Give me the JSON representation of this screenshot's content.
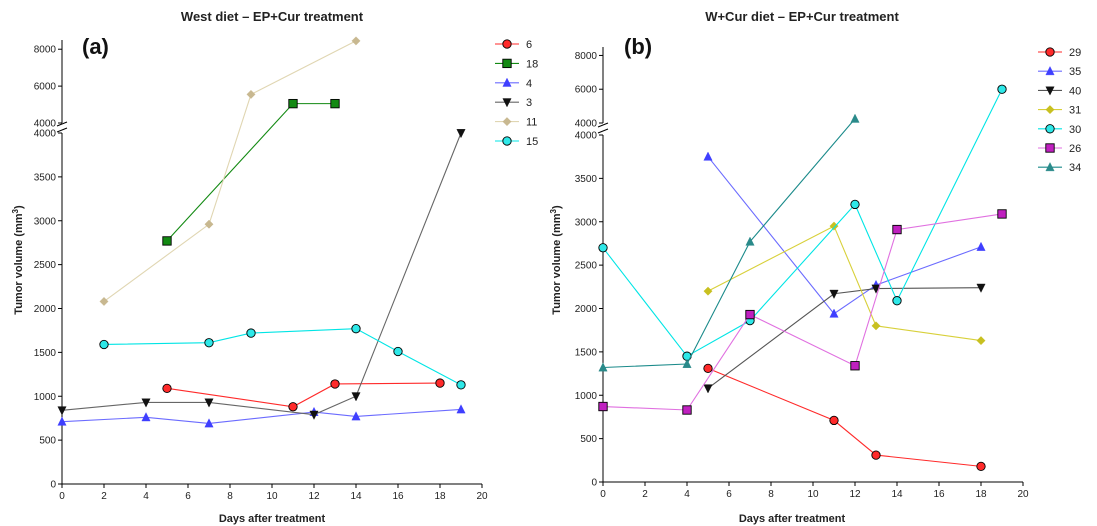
{
  "chart_data": [
    {
      "type": "line",
      "panel_label": "(a)",
      "title": "West diet – EP+Cur treatment",
      "xlabel": "Days after treatment",
      "ylabel_main": "Tumor volume (mm",
      "ylabel_sup": "3",
      "ylabel_close": ")",
      "xlim": [
        0,
        20
      ],
      "x_ticks": [
        "0",
        "2",
        "4",
        "6",
        "8",
        "10",
        "12",
        "14",
        "16",
        "18",
        "20"
      ],
      "y_lower_range": [
        0,
        4000
      ],
      "y_lower_ticks": [
        "0",
        "500",
        "1000",
        "1500",
        "2000",
        "2500",
        "3000",
        "3500",
        "4000"
      ],
      "y_upper_range": [
        4000,
        8500
      ],
      "y_upper_ticks": [
        "4000",
        "6000",
        "8000"
      ],
      "axis_break": true,
      "grid": false,
      "legend_position": "right",
      "series": [
        {
          "name": "6",
          "color": "#ff2a2a",
          "line_color": "#ff2a2a",
          "marker": "circle",
          "fill": "#ff2a2a",
          "x": [
            5,
            11,
            13,
            18
          ],
          "y": [
            1090,
            880,
            1140,
            1150
          ]
        },
        {
          "name": "18",
          "color": "#138a13",
          "line_color": "#138a13",
          "marker": "square",
          "fill": "#138a13",
          "x": [
            5,
            11,
            13
          ],
          "y": [
            2770,
            5050,
            5050
          ]
        },
        {
          "name": "4",
          "color": "#6b6bff",
          "line_color": "#6b6bff",
          "marker": "triangle-up",
          "fill": "#3f3fff",
          "x": [
            0,
            4,
            7,
            12,
            14,
            19
          ],
          "y": [
            710,
            760,
            690,
            820,
            770,
            850
          ]
        },
        {
          "name": "3",
          "color": "#666666",
          "line_color": "#666666",
          "marker": "triangle-down",
          "fill": "#111111",
          "x": [
            0,
            4,
            7,
            12,
            14,
            19
          ],
          "y": [
            840,
            930,
            930,
            790,
            1000,
            4000
          ]
        },
        {
          "name": "11",
          "color": "#e0d6b2",
          "line_color": "#e0d6b2",
          "marker": "diamond",
          "fill": "#c8b890",
          "x": [
            2,
            7,
            9,
            14
          ],
          "y": [
            2080,
            2960,
            5550,
            8450
          ]
        },
        {
          "name": "15",
          "color": "#00e5e5",
          "line_color": "#00e5e5",
          "marker": "circle",
          "fill": "#2ee8e8",
          "x": [
            2,
            7,
            9,
            14,
            16,
            19
          ],
          "y": [
            1590,
            1610,
            1720,
            1770,
            1510,
            1130
          ]
        }
      ]
    },
    {
      "type": "line",
      "panel_label": "(b)",
      "title": "W+Cur diet – EP+Cur treatment",
      "xlabel": "Days after treatment",
      "ylabel_main": "Tumor volume (mm",
      "ylabel_sup": "3",
      "ylabel_close": ")",
      "xlim": [
        0,
        20
      ],
      "x_ticks": [
        "0",
        "2",
        "4",
        "6",
        "8",
        "10",
        "12",
        "14",
        "16",
        "18",
        "20"
      ],
      "y_lower_range": [
        0,
        4000
      ],
      "y_lower_ticks": [
        "0",
        "500",
        "1000",
        "1500",
        "2000",
        "2500",
        "3000",
        "3500",
        "4000"
      ],
      "y_upper_range": [
        4000,
        8500
      ],
      "y_upper_ticks": [
        "4000",
        "6000",
        "8000"
      ],
      "axis_break": true,
      "grid": false,
      "legend_position": "right",
      "series": [
        {
          "name": "29",
          "color": "#ff2a2a",
          "line_color": "#ff2a2a",
          "marker": "circle",
          "fill": "#ff2a2a",
          "x": [
            5,
            11,
            13,
            18
          ],
          "y": [
            1310,
            710,
            310,
            180
          ]
        },
        {
          "name": "35",
          "color": "#6b6bff",
          "line_color": "#6b6bff",
          "marker": "triangle-up",
          "fill": "#3f3fff",
          "x": [
            5,
            11,
            13,
            18
          ],
          "y": [
            3750,
            1940,
            2270,
            2710
          ]
        },
        {
          "name": "40",
          "color": "#555555",
          "line_color": "#555555",
          "marker": "triangle-down",
          "fill": "#111111",
          "x": [
            5,
            11,
            13,
            18
          ],
          "y": [
            1080,
            2170,
            2230,
            2240
          ]
        },
        {
          "name": "31",
          "color": "#d8d03a",
          "line_color": "#d8d03a",
          "marker": "diamond",
          "fill": "#c8c020",
          "x": [
            5,
            11,
            13,
            18
          ],
          "y": [
            2200,
            2950,
            1800,
            1630
          ]
        },
        {
          "name": "30",
          "color": "#00e5e5",
          "line_color": "#00e5e5",
          "marker": "circle",
          "fill": "#2ee8e8",
          "x": [
            0,
            4,
            7,
            12,
            14,
            19
          ],
          "y": [
            2700,
            1450,
            1860,
            3200,
            2090,
            6000
          ]
        },
        {
          "name": "26",
          "color": "#e070e0",
          "line_color": "#e070e0",
          "marker": "square",
          "fill": "#c020c0",
          "x": [
            0,
            4,
            7,
            12,
            14,
            19
          ],
          "y": [
            870,
            830,
            1930,
            1340,
            2910,
            3090
          ]
        },
        {
          "name": "34",
          "color": "#1a8a8a",
          "line_color": "#1a8a8a",
          "marker": "triangle-up",
          "fill": "#2a8a8a",
          "x": [
            0,
            4,
            7,
            12
          ],
          "y": [
            1320,
            1360,
            2770,
            4250
          ]
        }
      ]
    }
  ]
}
